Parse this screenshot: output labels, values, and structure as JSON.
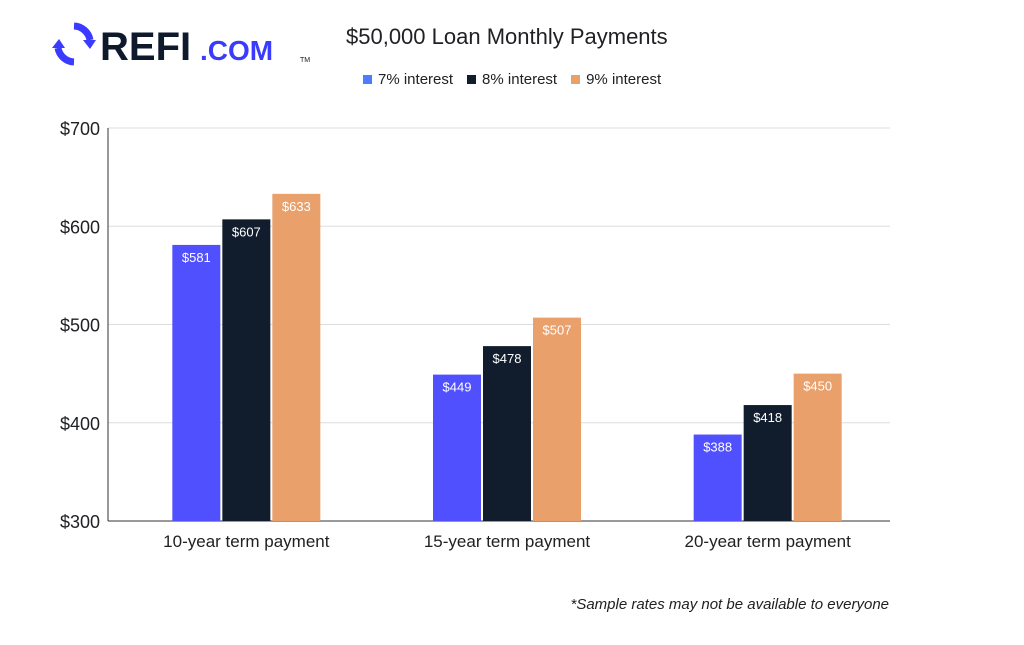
{
  "brand": {
    "logo_text": "REFI",
    "logo_suffix": ".COM",
    "trademark": "TM"
  },
  "footnote": "*Sample rates may not be available to everyone",
  "colors": {
    "series_7": "#5050ff",
    "series_8": "#111c2c",
    "series_9": "#e9a06b",
    "grid": "#dddddd",
    "axis": "#333333",
    "logo_blue": "#3b3bff",
    "logo_dark": "#0e1a2b"
  },
  "chart_data": {
    "type": "bar",
    "title": "$50,000 Loan Monthly Payments",
    "xlabel": "",
    "ylabel": "",
    "categories": [
      "10-year term payment",
      "15-year term payment",
      "20-year term payment"
    ],
    "series": [
      {
        "name": "7% interest",
        "values": [
          581,
          449,
          388
        ],
        "labels": [
          "$581",
          "$449",
          "$388"
        ]
      },
      {
        "name": "8% interest",
        "values": [
          607,
          478,
          418
        ],
        "labels": [
          "$607",
          "$478",
          "$418"
        ]
      },
      {
        "name": "9% interest",
        "values": [
          633,
          507,
          450
        ],
        "labels": [
          "$633",
          "$507",
          "$450"
        ]
      }
    ],
    "ylim": [
      300,
      700
    ],
    "yticks": [
      300,
      400,
      500,
      600,
      700
    ],
    "ytick_labels": [
      "$300",
      "$400",
      "$500",
      "$600",
      "$700"
    ],
    "grid": true,
    "legend_position": "top"
  }
}
